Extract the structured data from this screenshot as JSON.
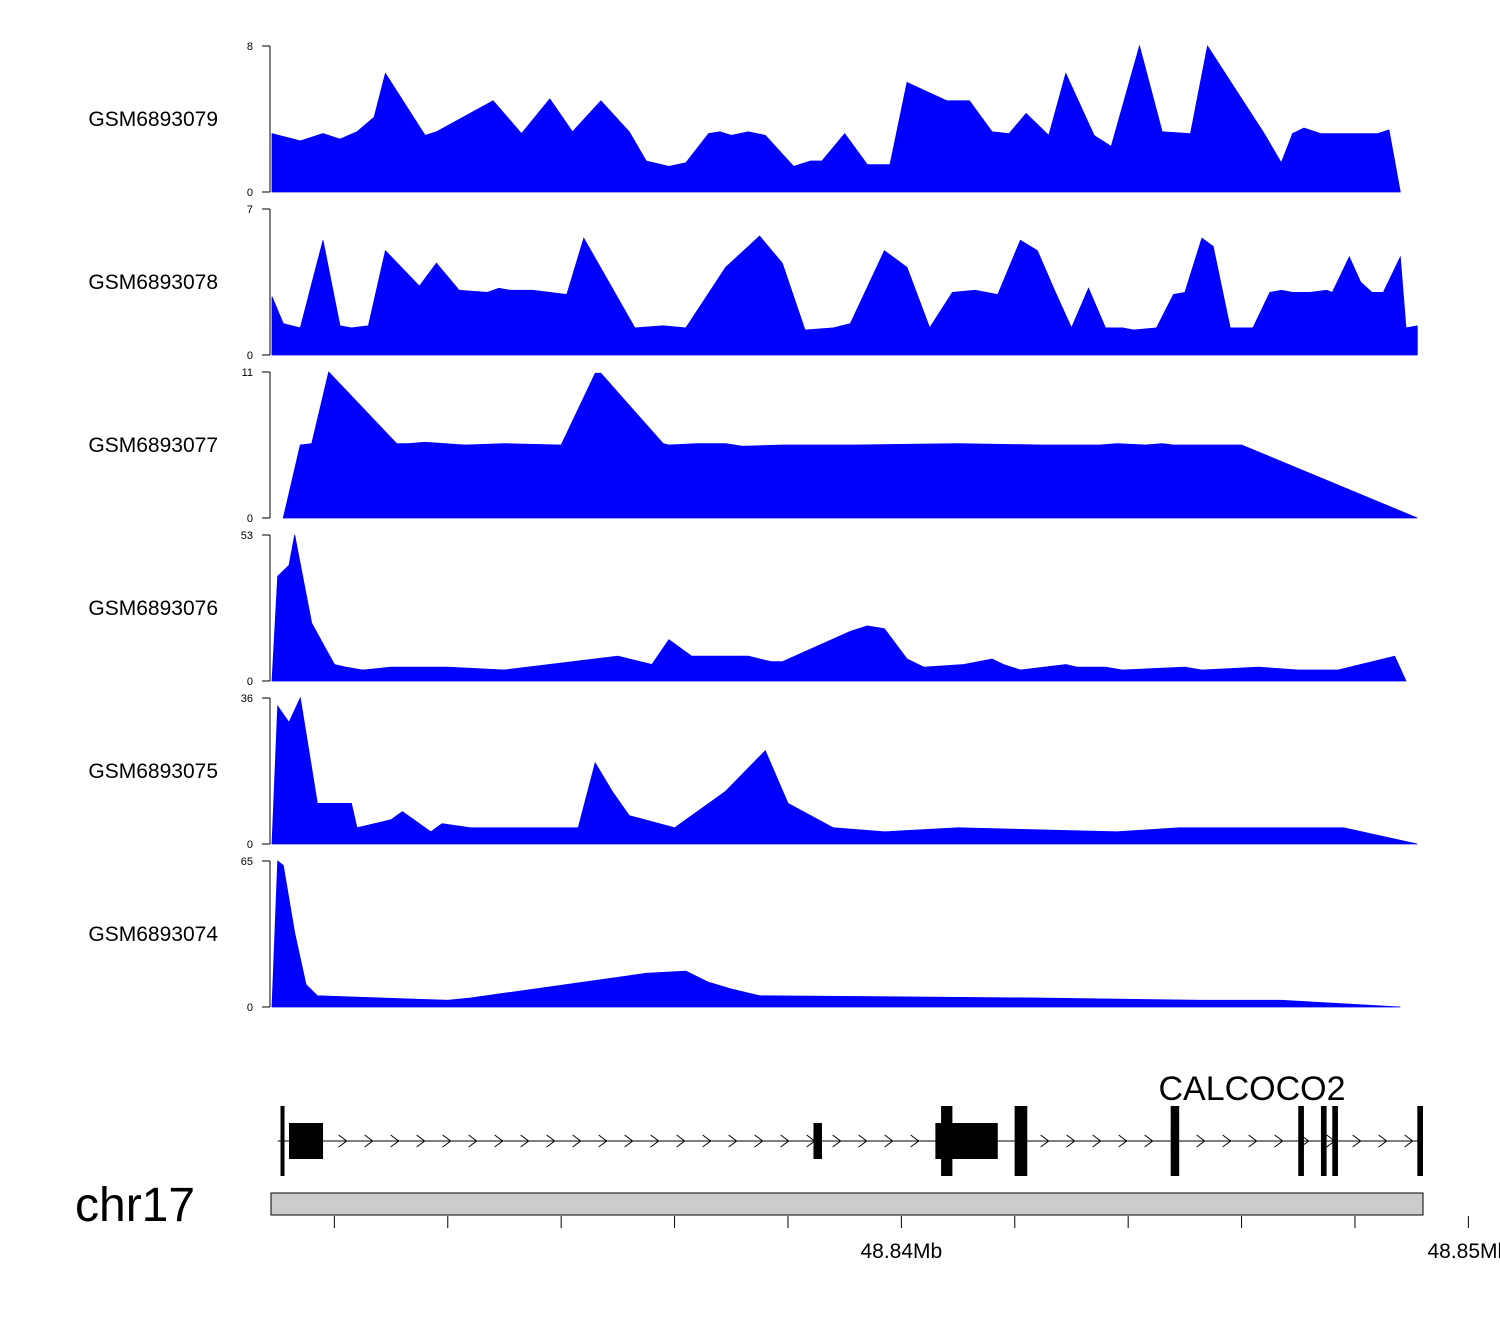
{
  "chart_data": {
    "type": "area",
    "title": "",
    "chromosome": "chr17",
    "x_range_mb": [
      48.8289,
      48.8492
    ],
    "x_ticks_mb": [
      48.83,
      48.832,
      48.834,
      48.836,
      48.838,
      48.84,
      48.842,
      48.844,
      48.846,
      48.848,
      48.85
    ],
    "x_tick_labels": [
      {
        "value": 48.84,
        "label": "48.84Mb"
      },
      {
        "value": 48.85,
        "label": "48.85Mb"
      }
    ],
    "tracks": [
      {
        "name": "GSM6893079",
        "ymax": 8,
        "ymin_label": "0",
        "ymax_label": "8",
        "extent": [
          48.8289,
          48.8488
        ],
        "peaks": [
          [
            48.8289,
            3.2
          ],
          [
            48.8294,
            2.8
          ],
          [
            48.8298,
            3.2
          ],
          [
            48.8301,
            2.9
          ],
          [
            48.8304,
            3.3
          ],
          [
            48.8307,
            4.1
          ],
          [
            48.8309,
            6.5
          ],
          [
            48.8316,
            3.1
          ],
          [
            48.8318,
            3.3
          ],
          [
            48.8328,
            5.0
          ],
          [
            48.8333,
            3.2
          ],
          [
            48.8338,
            5.1
          ],
          [
            48.8342,
            3.3
          ],
          [
            48.8347,
            5.0
          ],
          [
            48.8352,
            3.3
          ],
          [
            48.8355,
            1.7
          ],
          [
            48.8359,
            1.4
          ],
          [
            48.8362,
            1.6
          ],
          [
            48.8366,
            3.2
          ],
          [
            48.8368,
            3.3
          ],
          [
            48.837,
            3.1
          ],
          [
            48.8373,
            3.3
          ],
          [
            48.8376,
            3.1
          ],
          [
            48.8381,
            1.4
          ],
          [
            48.8384,
            1.7
          ],
          [
            48.8386,
            1.7
          ],
          [
            48.839,
            3.2
          ],
          [
            48.8394,
            1.5
          ],
          [
            48.8398,
            1.5
          ],
          [
            48.8401,
            6.0
          ],
          [
            48.8408,
            5.0
          ],
          [
            48.8412,
            5.0
          ],
          [
            48.8416,
            3.3
          ],
          [
            48.8419,
            3.2
          ],
          [
            48.8422,
            4.3
          ],
          [
            48.8426,
            3.1
          ],
          [
            48.8429,
            6.5
          ],
          [
            48.8434,
            3.1
          ],
          [
            48.8437,
            2.5
          ],
          [
            48.8442,
            8.0
          ],
          [
            48.8446,
            3.3
          ],
          [
            48.8451,
            3.2
          ],
          [
            48.8454,
            8.0
          ],
          [
            48.8464,
            3.2
          ],
          [
            48.8467,
            1.6
          ],
          [
            48.8469,
            3.2
          ],
          [
            48.8471,
            3.5
          ],
          [
            48.8474,
            3.2
          ],
          [
            48.8481,
            3.2
          ],
          [
            48.8484,
            3.2
          ],
          [
            48.8485,
            3.3
          ],
          [
            48.8486,
            3.4
          ]
        ]
      },
      {
        "name": "GSM6893078",
        "ymax": 7,
        "ymin_label": "0",
        "ymax_label": "7",
        "extent": [
          48.8289,
          48.8491
        ],
        "peaks": [
          [
            48.8289,
            2.8
          ],
          [
            48.8291,
            1.5
          ],
          [
            48.8294,
            1.3
          ],
          [
            48.8298,
            5.5
          ],
          [
            48.8301,
            1.4
          ],
          [
            48.8303,
            1.3
          ],
          [
            48.8306,
            1.4
          ],
          [
            48.8309,
            5.0
          ],
          [
            48.8315,
            3.3
          ],
          [
            48.8318,
            4.4
          ],
          [
            48.8322,
            3.1
          ],
          [
            48.8327,
            3.0
          ],
          [
            48.8329,
            3.2
          ],
          [
            48.8331,
            3.1
          ],
          [
            48.8335,
            3.1
          ],
          [
            48.8341,
            2.9
          ],
          [
            48.8344,
            5.6
          ],
          [
            48.8353,
            1.3
          ],
          [
            48.8358,
            1.4
          ],
          [
            48.8362,
            1.3
          ],
          [
            48.8369,
            4.2
          ],
          [
            48.8375,
            5.7
          ],
          [
            48.8379,
            4.4
          ],
          [
            48.8383,
            1.2
          ],
          [
            48.8388,
            1.3
          ],
          [
            48.8391,
            1.5
          ],
          [
            48.8397,
            5.0
          ],
          [
            48.8401,
            4.2
          ],
          [
            48.8405,
            1.3
          ],
          [
            48.8409,
            3.0
          ],
          [
            48.8413,
            3.1
          ],
          [
            48.8417,
            2.9
          ],
          [
            48.8421,
            5.5
          ],
          [
            48.8424,
            5.0
          ],
          [
            48.8427,
            3.1
          ],
          [
            48.843,
            1.3
          ],
          [
            48.8433,
            3.2
          ],
          [
            48.8436,
            1.3
          ],
          [
            48.8439,
            1.3
          ],
          [
            48.8441,
            1.2
          ],
          [
            48.8445,
            1.3
          ],
          [
            48.8448,
            2.9
          ],
          [
            48.845,
            3.0
          ],
          [
            48.8453,
            5.6
          ],
          [
            48.8455,
            5.2
          ],
          [
            48.8458,
            1.3
          ],
          [
            48.8462,
            1.3
          ],
          [
            48.8465,
            3.0
          ],
          [
            48.8467,
            3.1
          ],
          [
            48.8469,
            3.0
          ],
          [
            48.8472,
            3.0
          ],
          [
            48.8475,
            3.1
          ],
          [
            48.8476,
            3.0
          ],
          [
            48.8479,
            4.7
          ],
          [
            48.8481,
            3.5
          ],
          [
            48.8483,
            3.0
          ],
          [
            48.8485,
            3.0
          ],
          [
            48.8488,
            4.7
          ],
          [
            48.8489,
            1.3
          ],
          [
            48.8491,
            1.4
          ]
        ]
      },
      {
        "name": "GSM6893077",
        "ymax": 11,
        "ymin_label": "0",
        "ymax_label": "11",
        "extent": [
          48.8291,
          48.8491
        ],
        "peaks": [
          [
            48.8294,
            5.5
          ],
          [
            48.8296,
            5.6
          ],
          [
            48.8299,
            11.0
          ],
          [
            48.8311,
            5.6
          ],
          [
            48.8313,
            5.6
          ],
          [
            48.8316,
            5.7
          ],
          [
            48.8323,
            5.5
          ],
          [
            48.833,
            5.6
          ],
          [
            48.834,
            5.5
          ],
          [
            48.8346,
            10.9
          ],
          [
            48.8347,
            10.9
          ],
          [
            48.8358,
            5.6
          ],
          [
            48.8359,
            5.5
          ],
          [
            48.8364,
            5.6
          ],
          [
            48.8369,
            5.6
          ],
          [
            48.8372,
            5.4
          ],
          [
            48.8379,
            5.5
          ],
          [
            48.8392,
            5.5
          ],
          [
            48.841,
            5.6
          ],
          [
            48.8425,
            5.5
          ],
          [
            48.8435,
            5.5
          ],
          [
            48.8438,
            5.6
          ],
          [
            48.8443,
            5.5
          ],
          [
            48.8446,
            5.6
          ],
          [
            48.8448,
            5.5
          ],
          [
            48.8459,
            5.5
          ],
          [
            48.846,
            5.5
          ]
        ]
      },
      {
        "name": "GSM6893076",
        "ymax": 53,
        "ymin_label": "0",
        "ymax_label": "53",
        "extent": [
          48.8289,
          48.8489
        ],
        "peaks": [
          [
            48.829,
            38
          ],
          [
            48.8292,
            42
          ],
          [
            48.8293,
            53
          ],
          [
            48.8296,
            21
          ],
          [
            48.83,
            6
          ],
          [
            48.8302,
            5
          ],
          [
            48.8305,
            4
          ],
          [
            48.831,
            5
          ],
          [
            48.832,
            5
          ],
          [
            48.833,
            4
          ],
          [
            48.835,
            9
          ],
          [
            48.8356,
            6
          ],
          [
            48.8359,
            15
          ],
          [
            48.8363,
            9
          ],
          [
            48.8367,
            9
          ],
          [
            48.837,
            9
          ],
          [
            48.8373,
            9
          ],
          [
            48.8377,
            7
          ],
          [
            48.8379,
            7
          ],
          [
            48.8391,
            18
          ],
          [
            48.8394,
            20
          ],
          [
            48.8397,
            19
          ],
          [
            48.8401,
            8
          ],
          [
            48.8404,
            5
          ],
          [
            48.8411,
            6
          ],
          [
            48.8416,
            8
          ],
          [
            48.8418,
            6
          ],
          [
            48.8421,
            4
          ],
          [
            48.8429,
            6
          ],
          [
            48.8431,
            5
          ],
          [
            48.8436,
            5
          ],
          [
            48.8439,
            4
          ],
          [
            48.845,
            5
          ],
          [
            48.8453,
            4
          ],
          [
            48.8463,
            5
          ],
          [
            48.847,
            4
          ],
          [
            48.8477,
            4
          ],
          [
            48.8487,
            9
          ]
        ]
      },
      {
        "name": "GSM6893075",
        "ymax": 36,
        "ymin_label": "0",
        "ymax_label": "36",
        "extent": [
          48.8289,
          48.8491
        ],
        "peaks": [
          [
            48.829,
            34
          ],
          [
            48.8292,
            30
          ],
          [
            48.8294,
            36
          ],
          [
            48.8297,
            10
          ],
          [
            48.8303,
            10
          ],
          [
            48.8304,
            4
          ],
          [
            48.831,
            6
          ],
          [
            48.8312,
            8
          ],
          [
            48.8317,
            3
          ],
          [
            48.8319,
            5
          ],
          [
            48.8324,
            4
          ],
          [
            48.8334,
            4
          ],
          [
            48.8343,
            4
          ],
          [
            48.8346,
            20
          ],
          [
            48.8349,
            13
          ],
          [
            48.8352,
            7
          ],
          [
            48.836,
            4
          ],
          [
            48.8369,
            13
          ],
          [
            48.8376,
            23
          ],
          [
            48.838,
            10
          ],
          [
            48.8388,
            4
          ],
          [
            48.8397,
            3
          ],
          [
            48.841,
            4
          ],
          [
            48.8438,
            3
          ],
          [
            48.8449,
            4
          ],
          [
            48.8478,
            4
          ]
        ]
      },
      {
        "name": "GSM6893074",
        "ymax": 65,
        "ymin_label": "0",
        "ymax_label": "65",
        "extent": [
          48.8289,
          48.8488
        ],
        "peaks": [
          [
            48.829,
            65
          ],
          [
            48.8291,
            63
          ],
          [
            48.8293,
            33
          ],
          [
            48.8295,
            10
          ],
          [
            48.8297,
            5
          ],
          [
            48.832,
            3
          ],
          [
            48.8324,
            4
          ],
          [
            48.8355,
            15
          ],
          [
            48.8362,
            16
          ],
          [
            48.8366,
            11
          ],
          [
            48.837,
            8
          ],
          [
            48.8375,
            5
          ],
          [
            48.8424,
            4
          ],
          [
            48.8453,
            3
          ],
          [
            48.8467,
            3
          ]
        ]
      }
    ],
    "gene": {
      "name": "CALCOCO2",
      "strand": "+",
      "intron_line_mb": [
        48.829,
        48.8492
      ],
      "exons": [
        {
          "start": 48.82905,
          "end": 48.8291,
          "tall": true
        },
        {
          "start": 48.8292,
          "end": 48.8298,
          "tall": false
        },
        {
          "start": 48.83845,
          "end": 48.8386,
          "tall": false
        },
        {
          "start": 48.8406,
          "end": 48.8417,
          "tall": false
        },
        {
          "start": 48.8407,
          "end": 48.8409,
          "tall": true
        },
        {
          "start": 48.842,
          "end": 48.8421,
          "tall": true
        },
        {
          "start": 48.84215,
          "end": 48.8422,
          "tall": true
        },
        {
          "start": 48.842,
          "end": 48.8422,
          "tall": true
        },
        {
          "start": 48.84475,
          "end": 48.8449,
          "tall": true
        },
        {
          "start": 48.847,
          "end": 48.8471,
          "tall": true
        },
        {
          "start": 48.8474,
          "end": 48.8475,
          "tall": true
        },
        {
          "start": 48.8476,
          "end": 48.8477,
          "tall": true
        },
        {
          "start": 48.8491,
          "end": 48.8492,
          "tall": true
        }
      ]
    }
  }
}
